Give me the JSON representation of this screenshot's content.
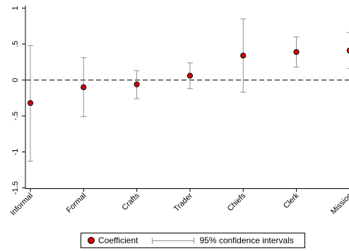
{
  "chart_data": {
    "type": "scatter",
    "title": "",
    "xlabel": "",
    "ylabel": "",
    "categories": [
      "Informal",
      "Formal",
      "Crafts",
      "Trader",
      "Chiefs",
      "Clerk",
      "Mission"
    ],
    "series": [
      {
        "name": "Coefficient",
        "values": [
          -0.32,
          -0.1,
          -0.06,
          0.06,
          0.34,
          0.39,
          0.41
        ],
        "ci_low": [
          -1.13,
          -0.51,
          -0.26,
          -0.12,
          -0.17,
          0.18,
          0.16
        ],
        "ci_high": [
          0.48,
          0.31,
          0.13,
          0.24,
          0.85,
          0.6,
          0.66
        ],
        "color": "#d40000"
      }
    ],
    "ylim": [
      -1.5,
      1
    ],
    "yticks": [
      -1.5,
      -1,
      -0.5,
      0,
      0.5,
      1
    ],
    "ytick_labels": [
      "-1.5",
      "-1",
      "-.5",
      "0",
      ".5",
      "1"
    ],
    "reference_line": 0,
    "grid": false,
    "legend_position": "bottom",
    "ci_color": "#909090"
  },
  "legend": {
    "coef_label": "Coefficient",
    "ci_label": "95% confidence intervals"
  }
}
